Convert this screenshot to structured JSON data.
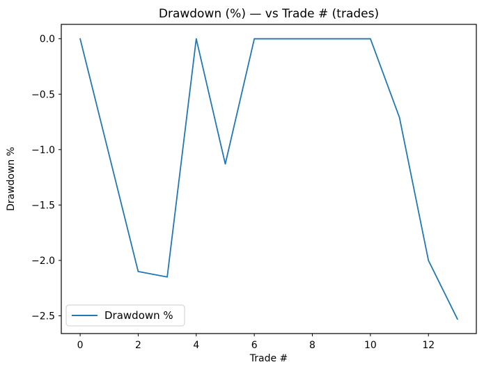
{
  "chart_data": {
    "type": "line",
    "title": "Drawdown (%) — vs Trade # (trades)",
    "xlabel": "Trade #",
    "ylabel": "Drawdown %",
    "x": [
      0,
      1,
      2,
      3,
      4,
      5,
      6,
      7,
      8,
      9,
      10,
      11,
      12,
      13
    ],
    "series": [
      {
        "name": "Drawdown %",
        "values": [
          0.0,
          -1.05,
          -2.1,
          -2.15,
          0.0,
          -1.13,
          0.0,
          0.0,
          0.0,
          0.0,
          0.0,
          -0.71,
          -2.0,
          -2.53
        ]
      }
    ],
    "xlim": [
      -0.65,
      13.65
    ],
    "ylim": [
      -2.66,
      0.13
    ],
    "x_ticks": [
      0,
      2,
      4,
      6,
      8,
      10,
      12
    ],
    "x_tick_labels": [
      "0",
      "2",
      "4",
      "6",
      "8",
      "10",
      "12"
    ],
    "y_ticks": [
      0,
      -0.5,
      -1,
      -1.5,
      -2,
      -2.5
    ],
    "y_tick_labels": [
      "0.0",
      "−0.5",
      "−1.0",
      "−1.5",
      "−2.0",
      "−2.5"
    ],
    "grid": false,
    "line_color": "#1f77b4",
    "spine_color": "#000000",
    "legend": {
      "label": "Drawdown %",
      "position": "lower left"
    }
  }
}
